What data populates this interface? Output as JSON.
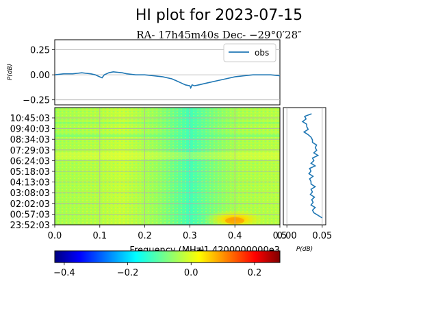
{
  "title": "HI plot for 2023-07-15",
  "subtitle": "RA- 17h45m40s Dec- −29°0′28″",
  "chart_data": [
    {
      "type": "line",
      "panel": "top",
      "ylabel": "P(dB)",
      "ylim": [
        -0.3,
        0.35
      ],
      "xlim": [
        0.0,
        0.5
      ],
      "yticks": [
        "−0.25",
        "0.00",
        "0.25"
      ],
      "ytick_values": [
        -0.25,
        0.0,
        0.25
      ],
      "grid": true,
      "legend": "top-right",
      "series": [
        {
          "name": "obs",
          "color": "#1f77b4",
          "x": [
            0.0,
            0.02,
            0.04,
            0.06,
            0.08,
            0.09,
            0.1,
            0.105,
            0.11,
            0.12,
            0.13,
            0.14,
            0.15,
            0.16,
            0.18,
            0.2,
            0.22,
            0.24,
            0.26,
            0.27,
            0.28,
            0.29,
            0.3,
            0.302,
            0.305,
            0.31,
            0.32,
            0.34,
            0.36,
            0.38,
            0.4,
            0.42,
            0.44,
            0.46,
            0.48,
            0.5
          ],
          "y": [
            0.0,
            0.01,
            0.01,
            0.02,
            0.01,
            0.0,
            -0.02,
            -0.03,
            0.0,
            0.02,
            0.03,
            0.025,
            0.02,
            0.01,
            0.0,
            0.0,
            -0.01,
            -0.02,
            -0.04,
            -0.06,
            -0.08,
            -0.1,
            -0.11,
            -0.13,
            -0.1,
            -0.11,
            -0.1,
            -0.08,
            -0.06,
            -0.04,
            -0.02,
            -0.01,
            0.0,
            0.0,
            0.0,
            -0.01
          ]
        }
      ]
    },
    {
      "type": "heatmap",
      "panel": "waterfall",
      "xlabel": "Frequency (MHz)",
      "offset_label": "+1.4200000000e3",
      "xlim": [
        0.0,
        0.5
      ],
      "xticks": [
        "0.0",
        "0.1",
        "0.2",
        "0.3",
        "0.4",
        "0.5"
      ],
      "xtick_values": [
        0.0,
        0.1,
        0.2,
        0.3,
        0.4,
        0.5
      ],
      "yticks": [
        "10:45:03",
        "09:40:03",
        "08:34:03",
        "07:29:03",
        "06:24:03",
        "05:18:03",
        "04:13:03",
        "03:08:03",
        "02:02:03",
        "00:57:03",
        "23:52:03"
      ],
      "grid": true,
      "colormap": "jet",
      "clim": [
        -0.43,
        0.28
      ]
    },
    {
      "type": "line",
      "panel": "side",
      "xlabel": "P(dB)",
      "xlim": [
        -0.005,
        0.055
      ],
      "xticks": [
        "0.00",
        "0.05"
      ],
      "xtick_values": [
        0.0,
        0.05
      ],
      "color": "#1f77b4",
      "y": [
        0.0,
        0.05,
        0.1,
        0.15,
        0.2,
        0.25,
        0.3,
        0.35,
        0.4,
        0.45,
        0.5,
        0.55,
        0.6,
        0.65,
        0.7,
        0.75,
        0.8,
        0.85,
        0.9,
        0.95,
        1.0
      ],
      "x": [
        0.05,
        0.042,
        0.04,
        0.041,
        0.039,
        0.04,
        0.04,
        0.038,
        0.037,
        0.038,
        0.04,
        0.042,
        0.044,
        0.046,
        0.042,
        0.04,
        0.03,
        0.034,
        0.028,
        0.031,
        0.035
      ]
    },
    {
      "type": "colorbar",
      "colormap": "jet",
      "clim": [
        -0.43,
        0.28
      ],
      "ticks": [
        "−0.4",
        "−0.2",
        "0.0",
        "0.2"
      ],
      "tick_values": [
        -0.4,
        -0.2,
        0.0,
        0.2
      ]
    }
  ]
}
